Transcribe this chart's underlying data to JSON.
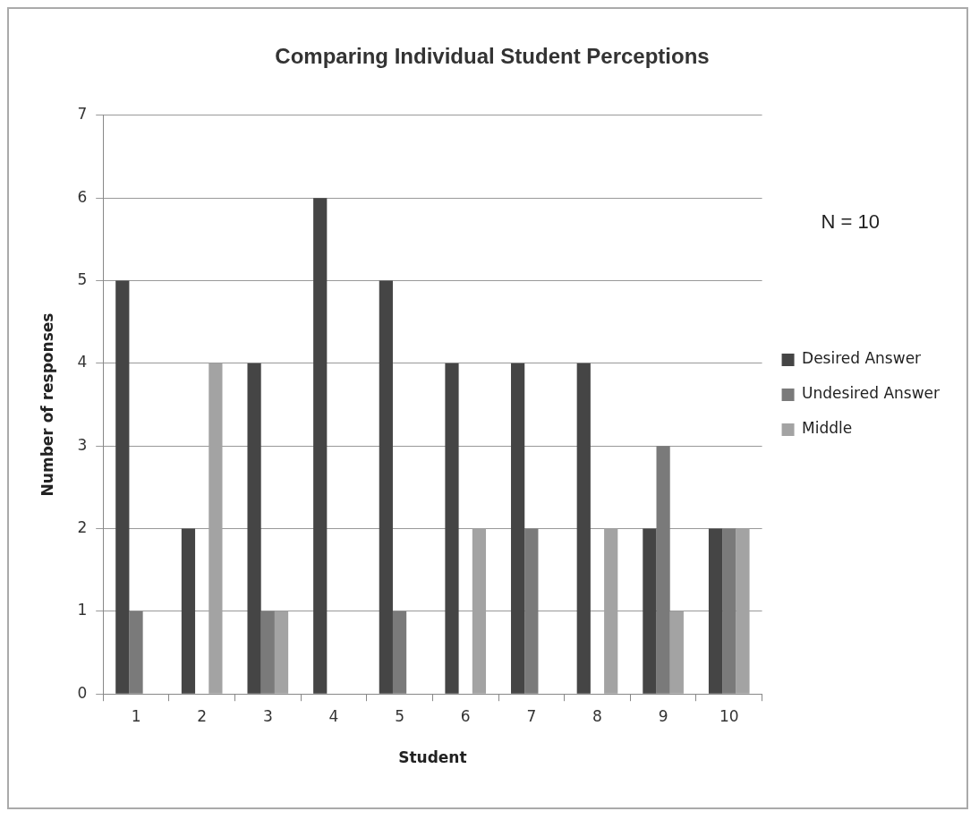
{
  "chart_data": {
    "type": "bar",
    "title": "Comparing Individual Student Perceptions",
    "xlabel": "Student",
    "ylabel": "Number of responses",
    "categories": [
      "1",
      "2",
      "3",
      "4",
      "5",
      "6",
      "7",
      "8",
      "9",
      "10"
    ],
    "series": [
      {
        "name": "Desired Answer",
        "color": "#454545",
        "values": [
          5,
          2,
          4,
          6,
          5,
          4,
          4,
          4,
          2,
          2
        ]
      },
      {
        "name": "Undesired Answer",
        "color": "#7a7a7a",
        "values": [
          1,
          0,
          1,
          0,
          1,
          0,
          2,
          0,
          3,
          2
        ]
      },
      {
        "name": "Middle",
        "color": "#a3a3a3",
        "values": [
          0,
          4,
          1,
          0,
          0,
          2,
          0,
          2,
          1,
          2
        ]
      }
    ],
    "ylim": [
      0,
      7
    ],
    "yticks": [
      0,
      1,
      2,
      3,
      4,
      5,
      6,
      7
    ],
    "grid": "y",
    "legend": "right",
    "annotations": [
      "N = 10"
    ]
  }
}
